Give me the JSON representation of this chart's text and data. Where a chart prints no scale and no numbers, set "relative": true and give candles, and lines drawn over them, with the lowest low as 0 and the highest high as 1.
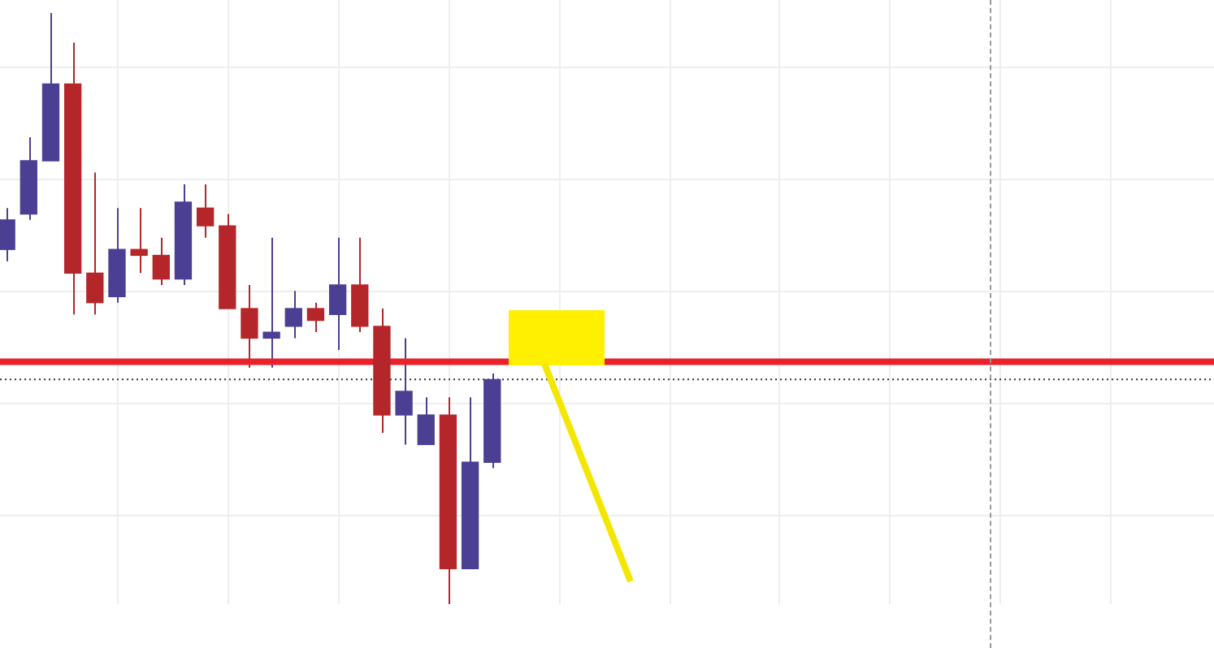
{
  "chart_data": {
    "type": "candlestick",
    "relative": true,
    "grid": true,
    "categories": [
      null,
      null,
      null,
      null,
      null,
      null,
      null,
      null,
      null,
      null,
      null,
      null,
      null,
      null,
      null,
      null,
      null,
      null,
      null,
      null,
      null,
      null,
      null
    ],
    "ohlc": [
      [
        0.6,
        0.67,
        0.58,
        0.65
      ],
      [
        0.66,
        0.79,
        0.65,
        0.75
      ],
      [
        0.75,
        1,
        0.75,
        0.88
      ],
      [
        0.88,
        0.95,
        0.49,
        0.56
      ],
      [
        0.56,
        0.73,
        0.49,
        0.51
      ],
      [
        0.52,
        0.67,
        0.51,
        0.6
      ],
      [
        0.6,
        0.67,
        0.56,
        0.59
      ],
      [
        0.59,
        0.62,
        0.54,
        0.55
      ],
      [
        0.55,
        0.71,
        0.54,
        0.68
      ],
      [
        0.67,
        0.71,
        0.62,
        0.64
      ],
      [
        0.64,
        0.66,
        0.5,
        0.5
      ],
      [
        0.5,
        0.54,
        0.4,
        0.45
      ],
      [
        0.45,
        0.62,
        0.4,
        0.46
      ],
      [
        0.47,
        0.53,
        0.45,
        0.5
      ],
      [
        0.5,
        0.51,
        0.46,
        0.48
      ],
      [
        0.49,
        0.62,
        0.43,
        0.54
      ],
      [
        0.54,
        0.62,
        0.46,
        0.47
      ],
      [
        0.47,
        0.5,
        0.29,
        0.32
      ],
      [
        0.32,
        0.45,
        0.27,
        0.36
      ],
      [
        0.27,
        0.35,
        0.27,
        0.32
      ],
      [
        0.32,
        0.35,
        0,
        0.06
      ],
      [
        0.06,
        0.35,
        0.06,
        0.24
      ],
      [
        0.24,
        0.39,
        0.23,
        0.38
      ]
    ],
    "colors": [
      "#4b3f94",
      "#4b3f94",
      "#4b3f94",
      "#b5262b",
      "#b5262b",
      "#4b3f94",
      "#b5262b",
      "#b5262b",
      "#4b3f94",
      "#b5262b",
      "#b5262b",
      "#b5262b",
      "#4b3f94",
      "#4b3f94",
      "#b5262b",
      "#4b3f94",
      "#b5262b",
      "#b5262b",
      "#4b3f94",
      "#4b3f94",
      "#b5262b",
      "#4b3f94",
      "#4b3f94"
    ],
    "ref_lines": [
      {
        "axis": "y",
        "value": 0.41,
        "color": "#e8212b",
        "line_style": "solid"
      },
      {
        "axis": "y",
        "value": 0.38,
        "color": "#333333",
        "line_style": "dotted"
      }
    ]
  }
}
